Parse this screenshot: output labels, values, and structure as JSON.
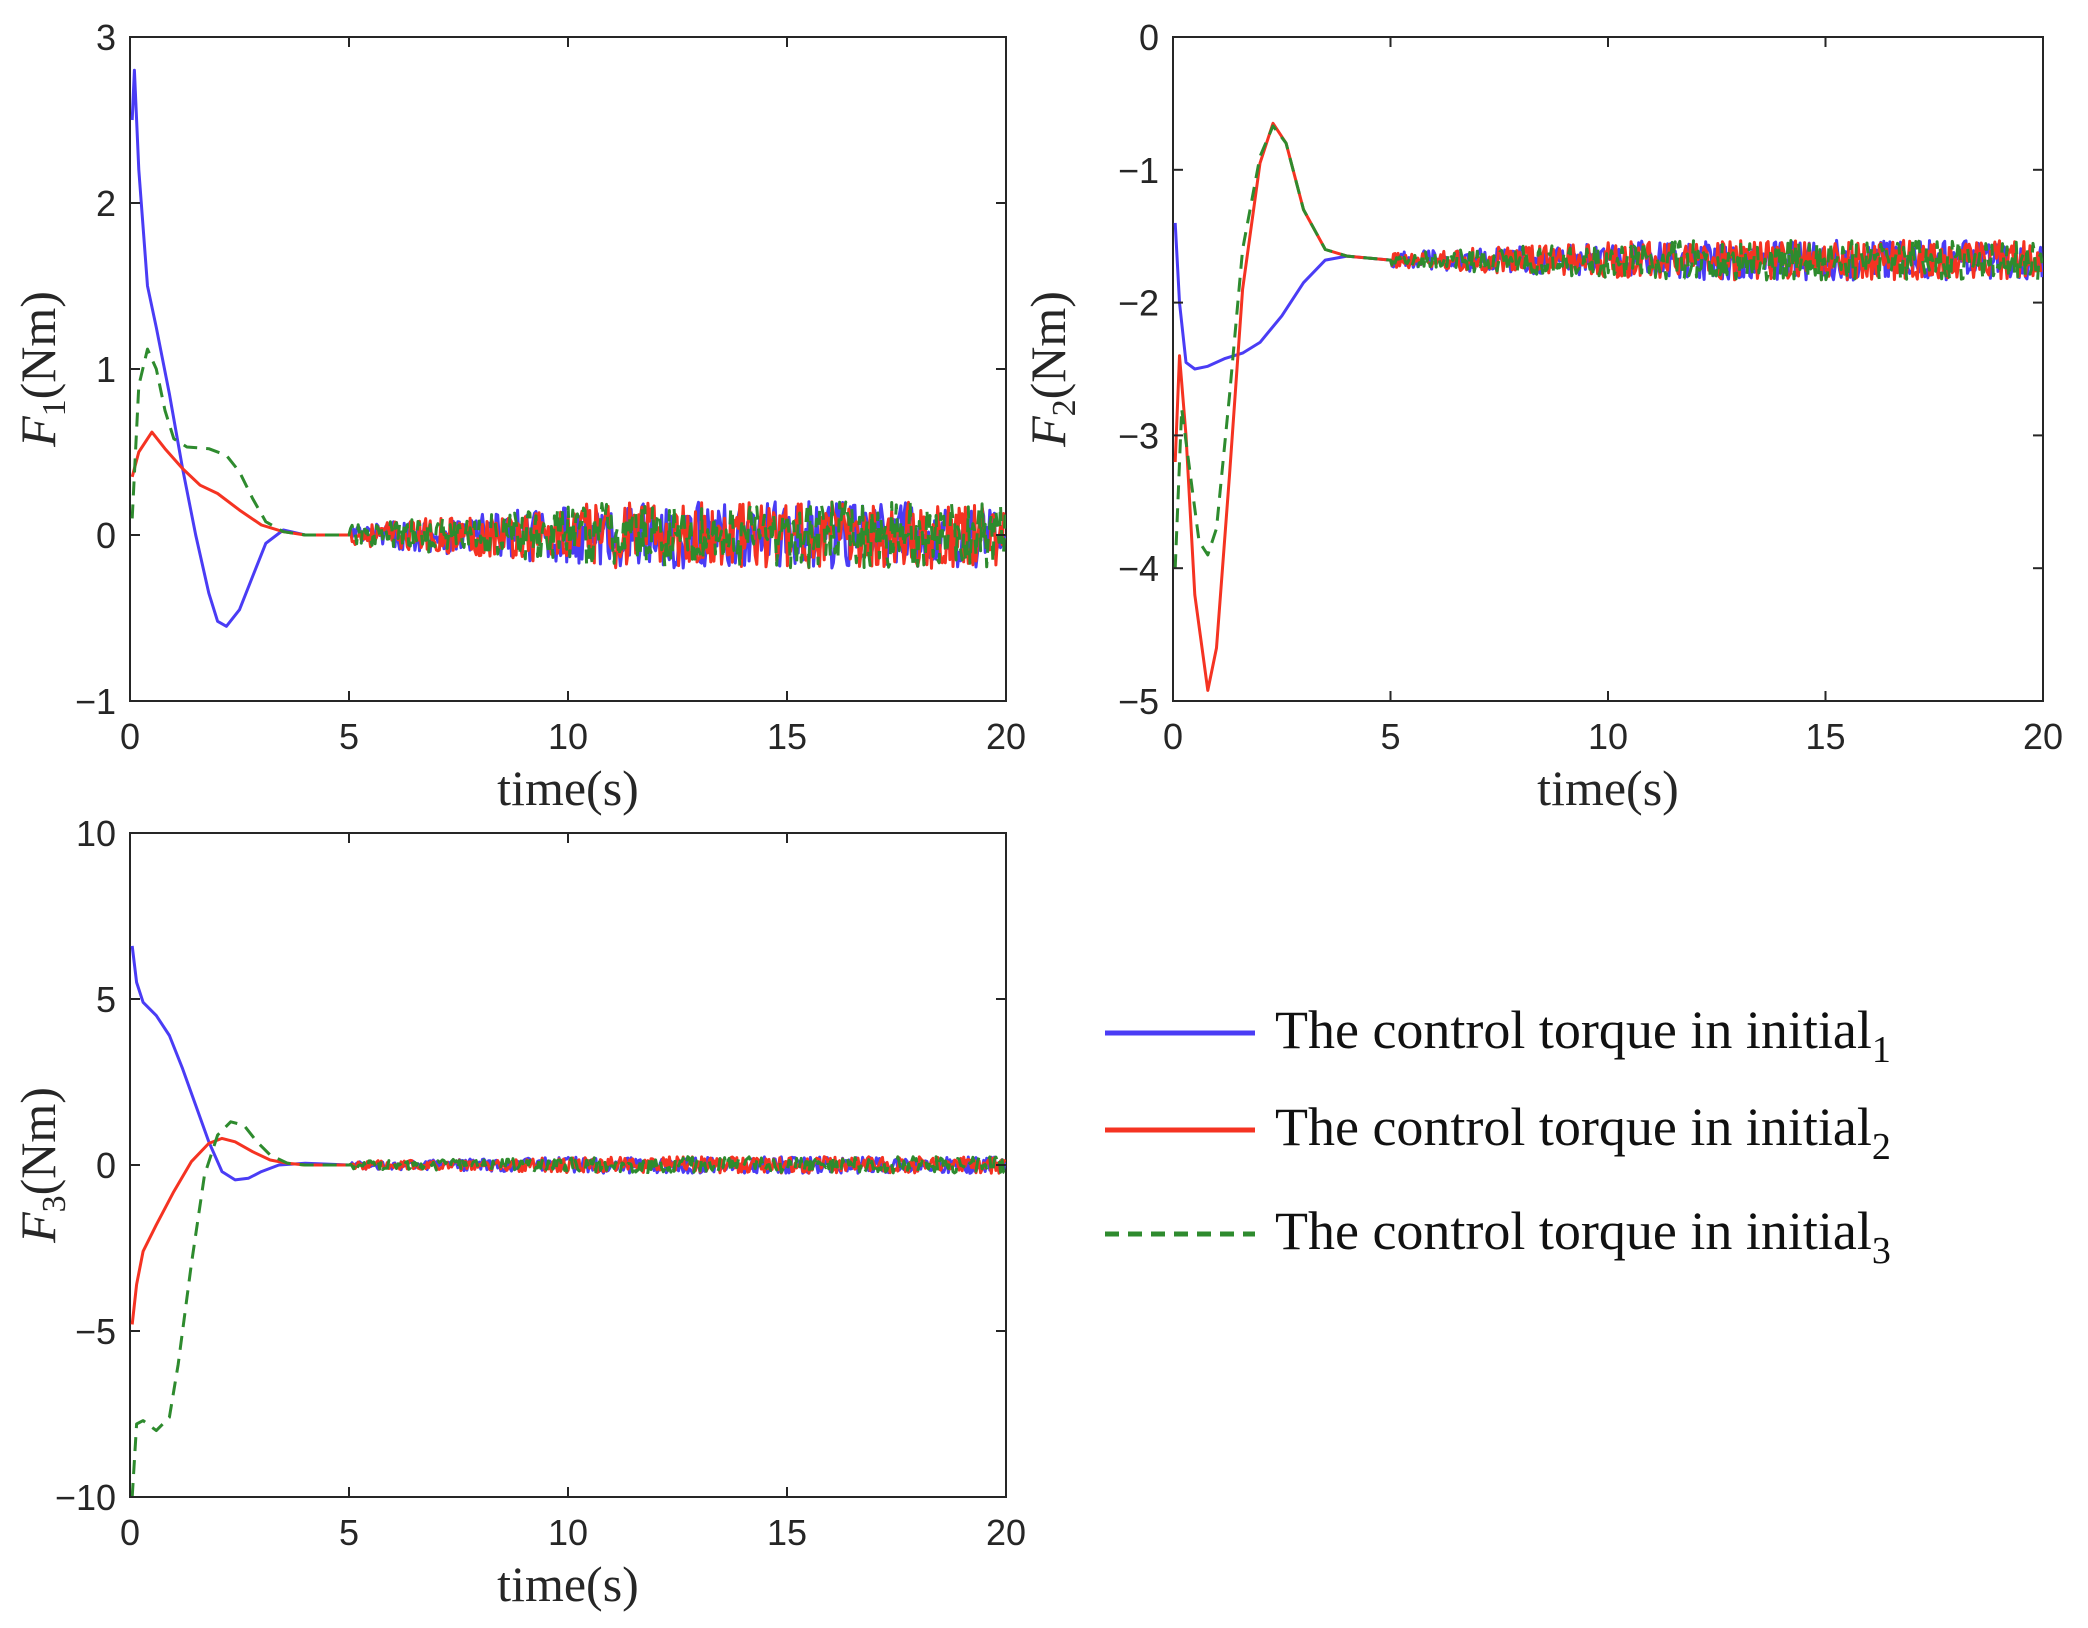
{
  "figure": {
    "legend": {
      "placement": "right of bottom-left panel",
      "entries": [
        {
          "text": "The control torque in initial",
          "sub": "1",
          "color": "#4a3cf5",
          "dash": "solid"
        },
        {
          "text": "The control torque in initial",
          "sub": "2",
          "color": "#f53322",
          "dash": "solid"
        },
        {
          "text": "The control torque in initial",
          "sub": "3",
          "color": "#2e8b2e",
          "dash": "dashed"
        }
      ]
    }
  },
  "chart_data": [
    {
      "type": "line",
      "panel": "top-left",
      "xlabel": "time(s)",
      "ylabel_symbol": "F",
      "ylabel_sub": "1",
      "ylabel_unit": "(Nm)",
      "xlim": [
        0,
        20
      ],
      "ylim": [
        -1,
        3
      ],
      "xticks": [
        0,
        5,
        10,
        15,
        20
      ],
      "yticks": [
        -1,
        0,
        1,
        2,
        3
      ],
      "xtick_labels": [
        "0",
        "5",
        "10",
        "15",
        "20"
      ],
      "ytick_labels": [
        "−1",
        "0",
        "1",
        "2",
        "3"
      ],
      "grid": false,
      "series": [
        {
          "name": "initial1",
          "color": "#4a3cf5",
          "dash": "solid",
          "x": [
            0.05,
            0.1,
            0.2,
            0.4,
            0.6,
            0.9,
            1.2,
            1.5,
            1.8,
            2.0,
            2.2,
            2.5,
            2.8,
            3.1,
            3.5,
            4.0,
            5.0
          ],
          "y": [
            2.5,
            2.8,
            2.2,
            1.5,
            1.25,
            0.85,
            0.4,
            0.0,
            -0.35,
            -0.52,
            -0.55,
            -0.45,
            -0.25,
            -0.05,
            0.03,
            0.0,
            0.0
          ],
          "noise_from": 5,
          "noise_to": 20,
          "noise_amp_start": 0.06,
          "noise_amp_end": 0.2
        },
        {
          "name": "initial2",
          "color": "#f53322",
          "dash": "solid",
          "x": [
            0.05,
            0.2,
            0.5,
            0.8,
            1.2,
            1.6,
            2.0,
            2.5,
            3.0,
            3.5,
            4.0,
            5.0
          ],
          "y": [
            0.35,
            0.5,
            0.62,
            0.52,
            0.4,
            0.3,
            0.25,
            0.15,
            0.06,
            0.02,
            0.0,
            0.0
          ],
          "noise_from": 5,
          "noise_to": 20,
          "noise_amp_start": 0.06,
          "noise_amp_end": 0.2
        },
        {
          "name": "initial3",
          "color": "#2e8b2e",
          "dash": "dashed",
          "x": [
            0.05,
            0.2,
            0.4,
            0.6,
            0.8,
            1.0,
            1.3,
            1.8,
            2.2,
            2.5,
            2.8,
            3.1,
            3.5,
            4.0,
            5.0
          ],
          "y": [
            0.1,
            0.9,
            1.12,
            1.0,
            0.75,
            0.58,
            0.53,
            0.52,
            0.48,
            0.38,
            0.22,
            0.08,
            0.02,
            0.0,
            0.0
          ],
          "noise_from": 5,
          "noise_to": 20,
          "noise_amp_start": 0.06,
          "noise_amp_end": 0.2
        }
      ]
    },
    {
      "type": "line",
      "panel": "top-right",
      "xlabel": "time(s)",
      "ylabel_symbol": "F",
      "ylabel_sub": "2",
      "ylabel_unit": "(Nm)",
      "xlim": [
        0,
        20
      ],
      "ylim": [
        -5,
        0
      ],
      "xticks": [
        0,
        5,
        10,
        15,
        20
      ],
      "yticks": [
        -5,
        -4,
        -3,
        -2,
        -1,
        0
      ],
      "xtick_labels": [
        "0",
        "5",
        "10",
        "15",
        "20"
      ],
      "ytick_labels": [
        "−5",
        "−4",
        "−3",
        "−2",
        "−1",
        "0"
      ],
      "grid": false,
      "series": [
        {
          "name": "initial1",
          "color": "#4a3cf5",
          "dash": "solid",
          "x": [
            0.05,
            0.15,
            0.3,
            0.5,
            0.8,
            1.2,
            1.6,
            2.0,
            2.5,
            3.0,
            3.5,
            4.0,
            5.0
          ],
          "y": [
            -1.4,
            -2.0,
            -2.45,
            -2.5,
            -2.48,
            -2.42,
            -2.38,
            -2.3,
            -2.1,
            -1.85,
            -1.68,
            -1.65,
            -1.68
          ],
          "noise_from": 5,
          "noise_to": 20,
          "noise_amp_start": 0.06,
          "noise_amp_end": 0.15
        },
        {
          "name": "initial2",
          "color": "#f53322",
          "dash": "solid",
          "x": [
            0.05,
            0.15,
            0.3,
            0.5,
            0.8,
            1.0,
            1.3,
            1.6,
            2.0,
            2.3,
            2.6,
            3.0,
            3.5,
            4.0,
            5.0
          ],
          "y": [
            -3.2,
            -2.4,
            -3.0,
            -4.2,
            -4.92,
            -4.6,
            -3.3,
            -1.9,
            -0.95,
            -0.65,
            -0.8,
            -1.3,
            -1.6,
            -1.65,
            -1.68
          ],
          "noise_from": 5,
          "noise_to": 20,
          "noise_amp_start": 0.06,
          "noise_amp_end": 0.15
        },
        {
          "name": "initial3",
          "color": "#2e8b2e",
          "dash": "dashed",
          "x": [
            0.05,
            0.2,
            0.4,
            0.6,
            0.8,
            1.0,
            1.3,
            1.6,
            2.0,
            2.3,
            2.6,
            3.0,
            3.5,
            4.0,
            5.0
          ],
          "y": [
            -4.0,
            -2.8,
            -3.3,
            -3.8,
            -3.9,
            -3.7,
            -2.7,
            -1.6,
            -0.9,
            -0.67,
            -0.8,
            -1.3,
            -1.6,
            -1.65,
            -1.68
          ],
          "noise_from": 5,
          "noise_to": 20,
          "noise_amp_start": 0.06,
          "noise_amp_end": 0.15
        }
      ]
    },
    {
      "type": "line",
      "panel": "bottom-left",
      "xlabel": "time(s)",
      "ylabel_symbol": "F",
      "ylabel_sub": "3",
      "ylabel_unit": "(Nm)",
      "xlim": [
        0,
        20
      ],
      "ylim": [
        -10,
        10
      ],
      "xticks": [
        0,
        5,
        10,
        15,
        20
      ],
      "yticks": [
        -10,
        -5,
        0,
        5,
        10
      ],
      "xtick_labels": [
        "0",
        "5",
        "10",
        "15",
        "20"
      ],
      "ytick_labels": [
        "−10",
        "−5",
        "0",
        "5",
        "10"
      ],
      "grid": false,
      "series": [
        {
          "name": "initial1",
          "color": "#4a3cf5",
          "dash": "solid",
          "x": [
            0.05,
            0.15,
            0.3,
            0.6,
            0.9,
            1.2,
            1.5,
            1.8,
            2.1,
            2.4,
            2.7,
            3.0,
            3.4,
            4.0,
            5.0
          ],
          "y": [
            6.6,
            5.5,
            4.9,
            4.5,
            3.9,
            2.9,
            1.8,
            0.7,
            -0.2,
            -0.45,
            -0.4,
            -0.2,
            0.0,
            0.05,
            0.0
          ],
          "noise_from": 5,
          "noise_to": 20,
          "noise_amp_start": 0.12,
          "noise_amp_end": 0.25
        },
        {
          "name": "initial2",
          "color": "#f53322",
          "dash": "solid",
          "x": [
            0.05,
            0.15,
            0.3,
            0.6,
            1.0,
            1.4,
            1.8,
            2.1,
            2.4,
            2.8,
            3.2,
            3.6,
            4.0,
            5.0
          ],
          "y": [
            -4.8,
            -3.6,
            -2.6,
            -1.8,
            -0.8,
            0.1,
            0.65,
            0.8,
            0.7,
            0.4,
            0.15,
            0.05,
            0.0,
            0.0
          ],
          "noise_from": 5,
          "noise_to": 20,
          "noise_amp_start": 0.12,
          "noise_amp_end": 0.25
        },
        {
          "name": "initial3",
          "color": "#2e8b2e",
          "dash": "dashed",
          "x": [
            0.05,
            0.15,
            0.3,
            0.6,
            0.9,
            1.1,
            1.4,
            1.7,
            2.0,
            2.3,
            2.6,
            2.9,
            3.2,
            3.6,
            4.0,
            5.0
          ],
          "y": [
            -10.0,
            -7.8,
            -7.7,
            -8.0,
            -7.6,
            -6.0,
            -3.0,
            -0.3,
            0.9,
            1.3,
            1.2,
            0.7,
            0.3,
            0.05,
            0.0,
            0.0
          ],
          "noise_from": 5,
          "noise_to": 20,
          "noise_amp_start": 0.12,
          "noise_amp_end": 0.25
        }
      ]
    }
  ]
}
